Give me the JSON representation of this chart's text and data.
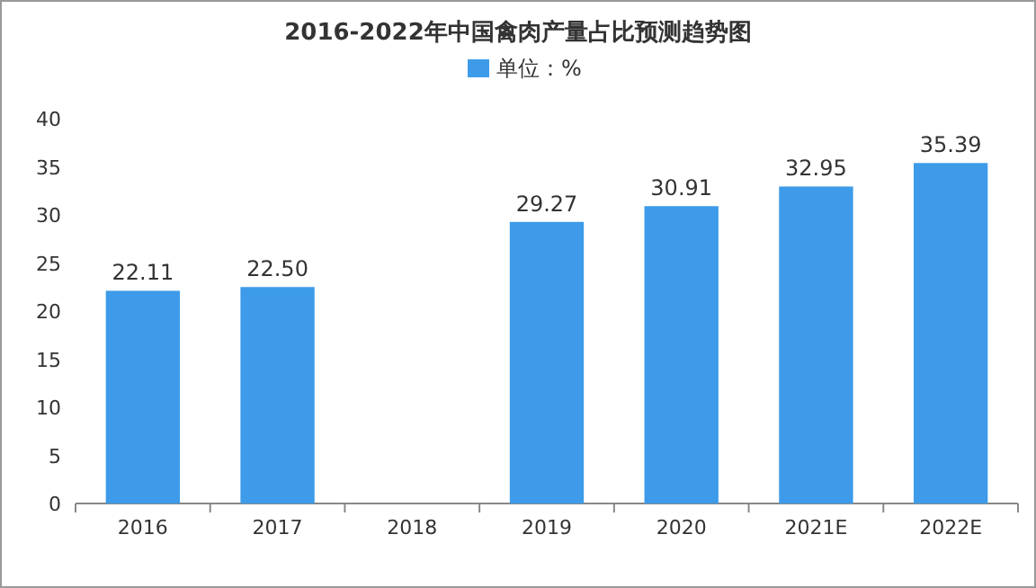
{
  "chart_data": {
    "type": "bar",
    "title": "2016-2022年中国禽肉产量占比预测趋势图",
    "categories": [
      "2016",
      "2017",
      "2018",
      "2019",
      "2020",
      "2021E",
      "2022E"
    ],
    "series": [
      {
        "name": "单位：%",
        "color": "#3d9be9",
        "values": [
          22.11,
          22.5,
          null,
          29.27,
          30.91,
          32.95,
          35.39
        ],
        "value_labels": [
          "22.11",
          "22.50",
          null,
          "29.27",
          "30.91",
          "32.95",
          "35.39"
        ]
      }
    ],
    "ylim": [
      0,
      40
    ],
    "yticks": [
      0,
      5,
      10,
      15,
      20,
      25,
      30,
      35,
      40
    ],
    "legend": "top",
    "grid": false
  }
}
